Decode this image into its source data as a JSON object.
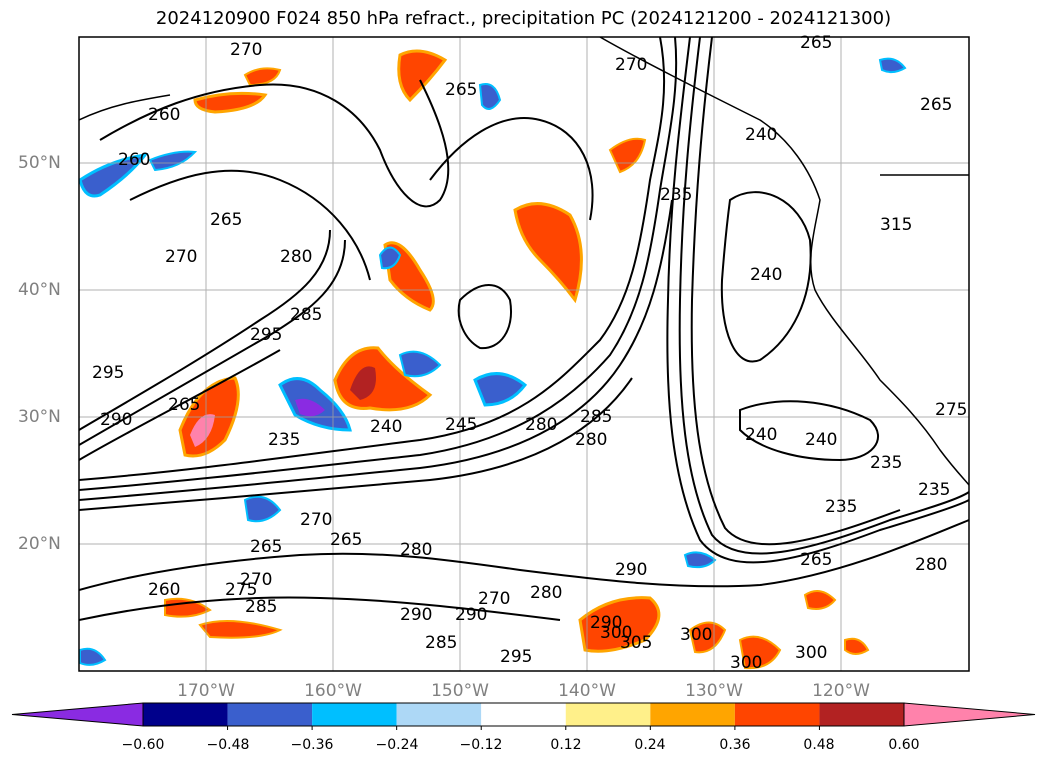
{
  "title": "2024120900 F024 850 hPa refract., precipitation PC (2024121200 - 2024121300)",
  "map": {
    "region": "North Pacific / western North America",
    "lat_labels": [
      "50°N",
      "40°N",
      "30°N",
      "20°N"
    ],
    "lon_labels": [
      "170°W",
      "160°W",
      "150°W",
      "140°W",
      "130°W",
      "120°W"
    ],
    "grid": true,
    "contour_field": "850 hPa refractivity",
    "contour_labels": [
      "270",
      "265",
      "270",
      "265",
      "260",
      "265",
      "260",
      "265",
      "270",
      "280",
      "295",
      "295",
      "285",
      "290",
      "265",
      "235",
      "240",
      "245",
      "280",
      "285",
      "280",
      "240",
      "240",
      "240",
      "235",
      "235",
      "235",
      "265",
      "290",
      "270",
      "265",
      "280",
      "275",
      "270",
      "285",
      "290",
      "285",
      "290",
      "295",
      "270",
      "280",
      "290",
      "300",
      "305",
      "300",
      "300",
      "300",
      "280",
      "275",
      "240",
      "235",
      "265",
      "260",
      "315"
    ]
  },
  "colorbar": {
    "ticks": [
      "−0.60",
      "−0.48",
      "−0.36",
      "−0.24",
      "−0.12",
      "0.12",
      "0.24",
      "0.36",
      "0.48",
      "0.60"
    ],
    "colors": [
      "#8a2be2",
      "#00008b",
      "#3a5fcd",
      "#00bfff",
      "#add8f6",
      "#ffffff",
      "#fff08a",
      "#ffa500",
      "#ff4500",
      "#b22222",
      "#ff82ab"
    ],
    "extend": "both"
  }
}
